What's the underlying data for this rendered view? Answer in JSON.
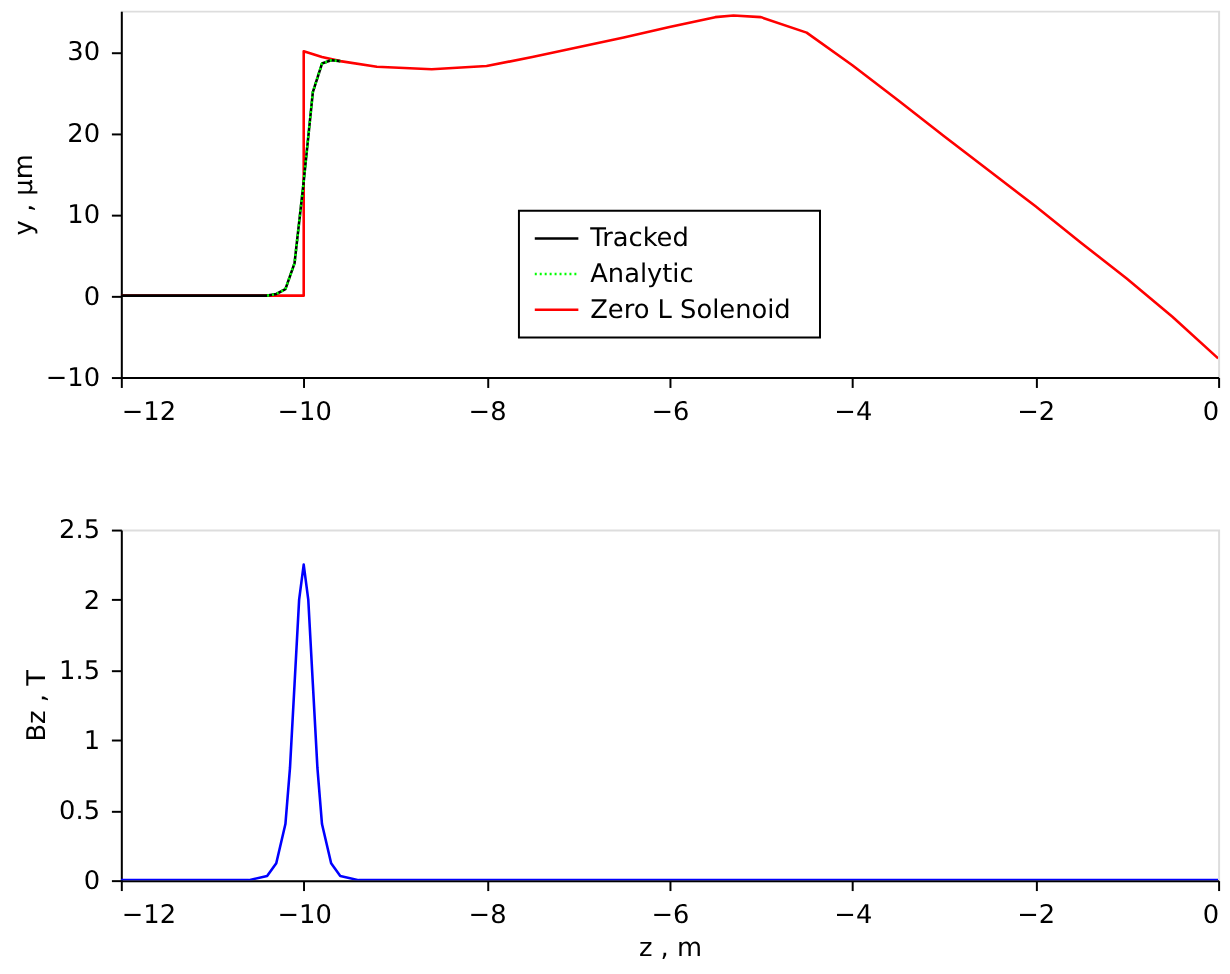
{
  "chart_data": [
    {
      "type": "line",
      "ylabel": "y , μm",
      "xlim": [
        -12,
        0
      ],
      "xticks": [
        -12,
        -10,
        -8,
        -6,
        -4,
        -2,
        0
      ],
      "ylim": [
        -10,
        35
      ],
      "yticks": [
        -10,
        0,
        10,
        20,
        30
      ],
      "grid": false,
      "legend": "bottom",
      "series": [
        {
          "name": "Tracked",
          "color": "#000000",
          "line_style": "solid",
          "x": [
            -12,
            -10.4,
            -10.3,
            -10.2,
            -10.1,
            -10.0,
            -9.9,
            -9.8,
            -9.7,
            -9.6
          ],
          "values": [
            0,
            0,
            0.2,
            0.8,
            4,
            14,
            25,
            28.5,
            28.9,
            28.8
          ]
        },
        {
          "name": "Analytic",
          "color": "#00ff00",
          "line_style": "dotted",
          "x": [
            -10.4,
            -10.3,
            -10.2,
            -10.1,
            -10.0,
            -9.9,
            -9.8,
            -9.7,
            -9.6
          ],
          "values": [
            0,
            0.2,
            0.8,
            4,
            14,
            25,
            28.5,
            28.9,
            28.8
          ]
        },
        {
          "name": "Zero L Solenoid",
          "color": "#ff0000",
          "line_style": "solid",
          "x": [
            -12,
            -10,
            -10,
            -9.8,
            -9.6,
            -9.2,
            -8.6,
            -8,
            -7.5,
            -7,
            -6.5,
            -6,
            -5.5,
            -5.3,
            -5,
            -4.5,
            -4,
            -3.5,
            -3,
            -2.5,
            -2,
            -1.5,
            -1,
            -0.5,
            0
          ],
          "values": [
            0,
            0,
            30,
            29.3,
            28.8,
            28.1,
            27.8,
            28.2,
            29.3,
            30.5,
            31.7,
            33.0,
            34.2,
            34.4,
            34.2,
            32.3,
            28.3,
            24.0,
            19.6,
            15.3,
            11.0,
            6.5,
            2.1,
            -2.6,
            -7.7
          ]
        }
      ]
    },
    {
      "type": "line",
      "xlabel": "z , m",
      "ylabel": "Bz , T",
      "xlim": [
        -12,
        0
      ],
      "xticks": [
        -12,
        -10,
        -8,
        -6,
        -4,
        -2,
        0
      ],
      "ylim": [
        0,
        2.5
      ],
      "yticks": [
        0,
        0.5,
        1,
        1.5,
        2,
        2.5
      ],
      "grid": false,
      "legend": false,
      "series": [
        {
          "color": "#0000ff",
          "line_style": "solid",
          "x": [
            -12,
            -10.6,
            -10.4,
            -10.3,
            -10.2,
            -10.15,
            -10.1,
            -10.05,
            -10.0,
            -9.95,
            -9.9,
            -9.85,
            -9.8,
            -9.7,
            -9.6,
            -9.4,
            -9.3,
            0
          ],
          "values": [
            0,
            0,
            0.03,
            0.12,
            0.4,
            0.8,
            1.4,
            2.0,
            2.25,
            2.0,
            1.4,
            0.8,
            0.4,
            0.12,
            0.03,
            0,
            0,
            0
          ]
        }
      ]
    }
  ]
}
